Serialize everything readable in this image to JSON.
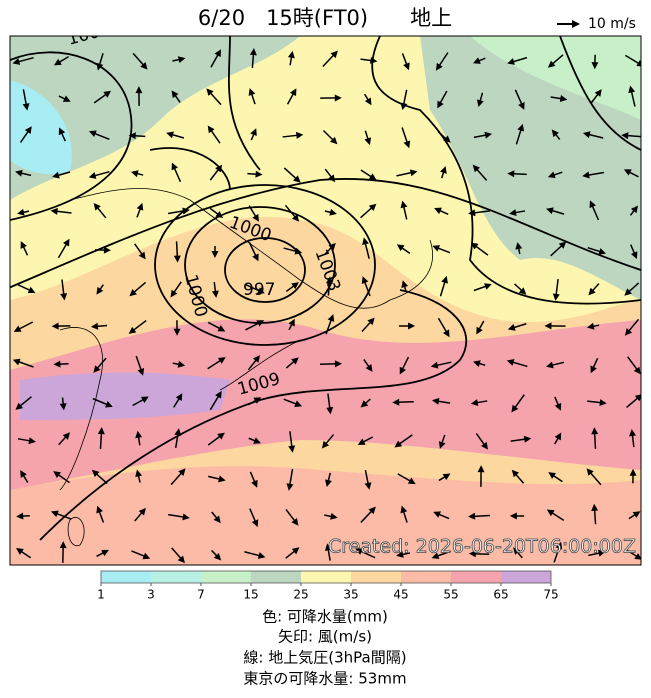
{
  "header": {
    "title": "6/20　15時(FT0)　　地上",
    "wind_scale": "10 m/s"
  },
  "map": {
    "created": "Created: 2026-06-20T06:00:00Z",
    "isobar_labels": [
      "1000",
      "1003",
      "1000",
      "997",
      "1009",
      "100"
    ]
  },
  "colorbar": {
    "ticks": [
      1,
      3,
      7,
      15,
      25,
      35,
      45,
      55,
      65,
      75
    ],
    "colors": [
      "#a8ecf4",
      "#b9f0e4",
      "#c8f0c8",
      "#bcd6c0",
      "#fdf6b0",
      "#fcd7a0",
      "#fbbba6",
      "#f5a3ad",
      "#cda6d9"
    ]
  },
  "legend": {
    "lines": [
      "色: 可降水量(mm)",
      "矢印: 風(m/s)",
      "線: 地上気圧(3hPa間隔)",
      "東京の可降水量: 53mm"
    ]
  }
}
